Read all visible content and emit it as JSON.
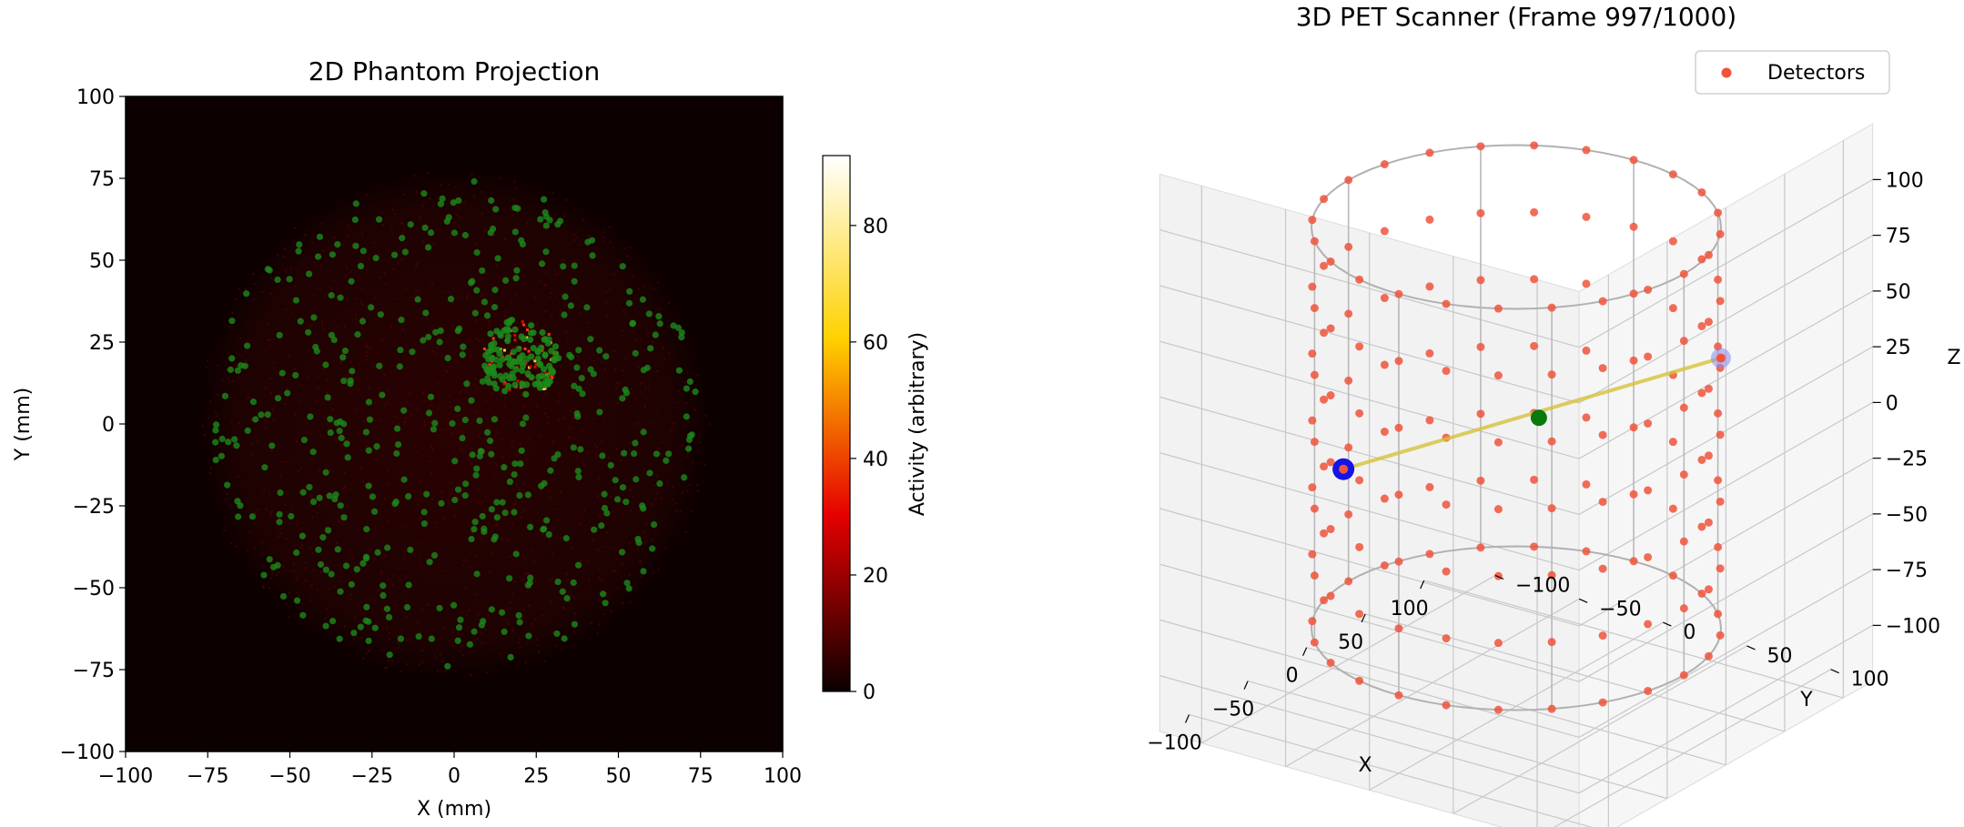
{
  "chart_data": [
    {
      "type": "heatmap",
      "title": "2D Phantom Projection",
      "xlabel": "X (mm)",
      "ylabel": "Y (mm)",
      "xlim": [
        -100,
        100
      ],
      "ylim": [
        -100,
        100
      ],
      "xticks": [
        "−100",
        "−75",
        "−50",
        "−25",
        "0",
        "25",
        "50",
        "75",
        "100"
      ],
      "yticks": [
        "−100",
        "−75",
        "−50",
        "−25",
        "0",
        "25",
        "50",
        "75",
        "100"
      ],
      "xtick_values": [
        -100,
        -75,
        -50,
        -25,
        0,
        25,
        50,
        75,
        100
      ],
      "ytick_values": [
        -100,
        -75,
        -50,
        -25,
        0,
        25,
        50,
        75,
        100
      ],
      "grid": false,
      "phantom": {
        "center": [
          0,
          0
        ],
        "radius": 78
      },
      "hot_region": {
        "center": [
          20,
          20
        ],
        "radius": 12
      },
      "overlay_points_color": "#1b8a1b",
      "colorbar": {
        "label": "Activity (arbitrary)",
        "range": [
          0,
          92
        ],
        "ticks": [
          "0",
          "20",
          "40",
          "60",
          "80"
        ],
        "tick_values": [
          0,
          20,
          40,
          60,
          80
        ],
        "colormap": "hot"
      }
    },
    {
      "type": "scatter",
      "projection": "3d",
      "title": "3D PET Scanner (Frame 997/1000)",
      "xlabel": "X",
      "ylabel": "Y",
      "zlabel": "Z",
      "xlim": [
        -110,
        110
      ],
      "ylim": [
        -110,
        110
      ],
      "zlim": [
        -100,
        100
      ],
      "xticks": [
        "−100",
        "−50",
        "0",
        "50",
        "100"
      ],
      "yticks": [
        "−100",
        "−50",
        "0",
        "50",
        "100"
      ],
      "zticks": [
        "−100",
        "−75",
        "−50",
        "−25",
        "0",
        "25",
        "50",
        "75",
        "100"
      ],
      "xtick_values": [
        -100,
        -50,
        0,
        50,
        100
      ],
      "ytick_values": [
        -100,
        -50,
        0,
        50,
        100
      ],
      "ztick_values": [
        -100,
        -75,
        -50,
        -25,
        0,
        25,
        50,
        75,
        100
      ],
      "grid": true,
      "legend": {
        "placement": "top-right",
        "entries": [
          "Detectors"
        ]
      },
      "detector_ring": {
        "radius": 100,
        "rings_z": [
          -90,
          -60,
          -30,
          0,
          30,
          60,
          90
        ],
        "detectors_per_ring": 24
      },
      "detector_color": "#f0533c",
      "event": {
        "source": [
          5,
          10,
          5
        ],
        "detector_a": [
          -90,
          -40,
          0
        ],
        "detector_b": [
          60,
          80,
          30
        ],
        "line_color": "#d7c23a",
        "source_color": "#0a7a0a",
        "detector_a_color": "#1414e6",
        "detector_b_color": "#8888ee"
      }
    }
  ]
}
